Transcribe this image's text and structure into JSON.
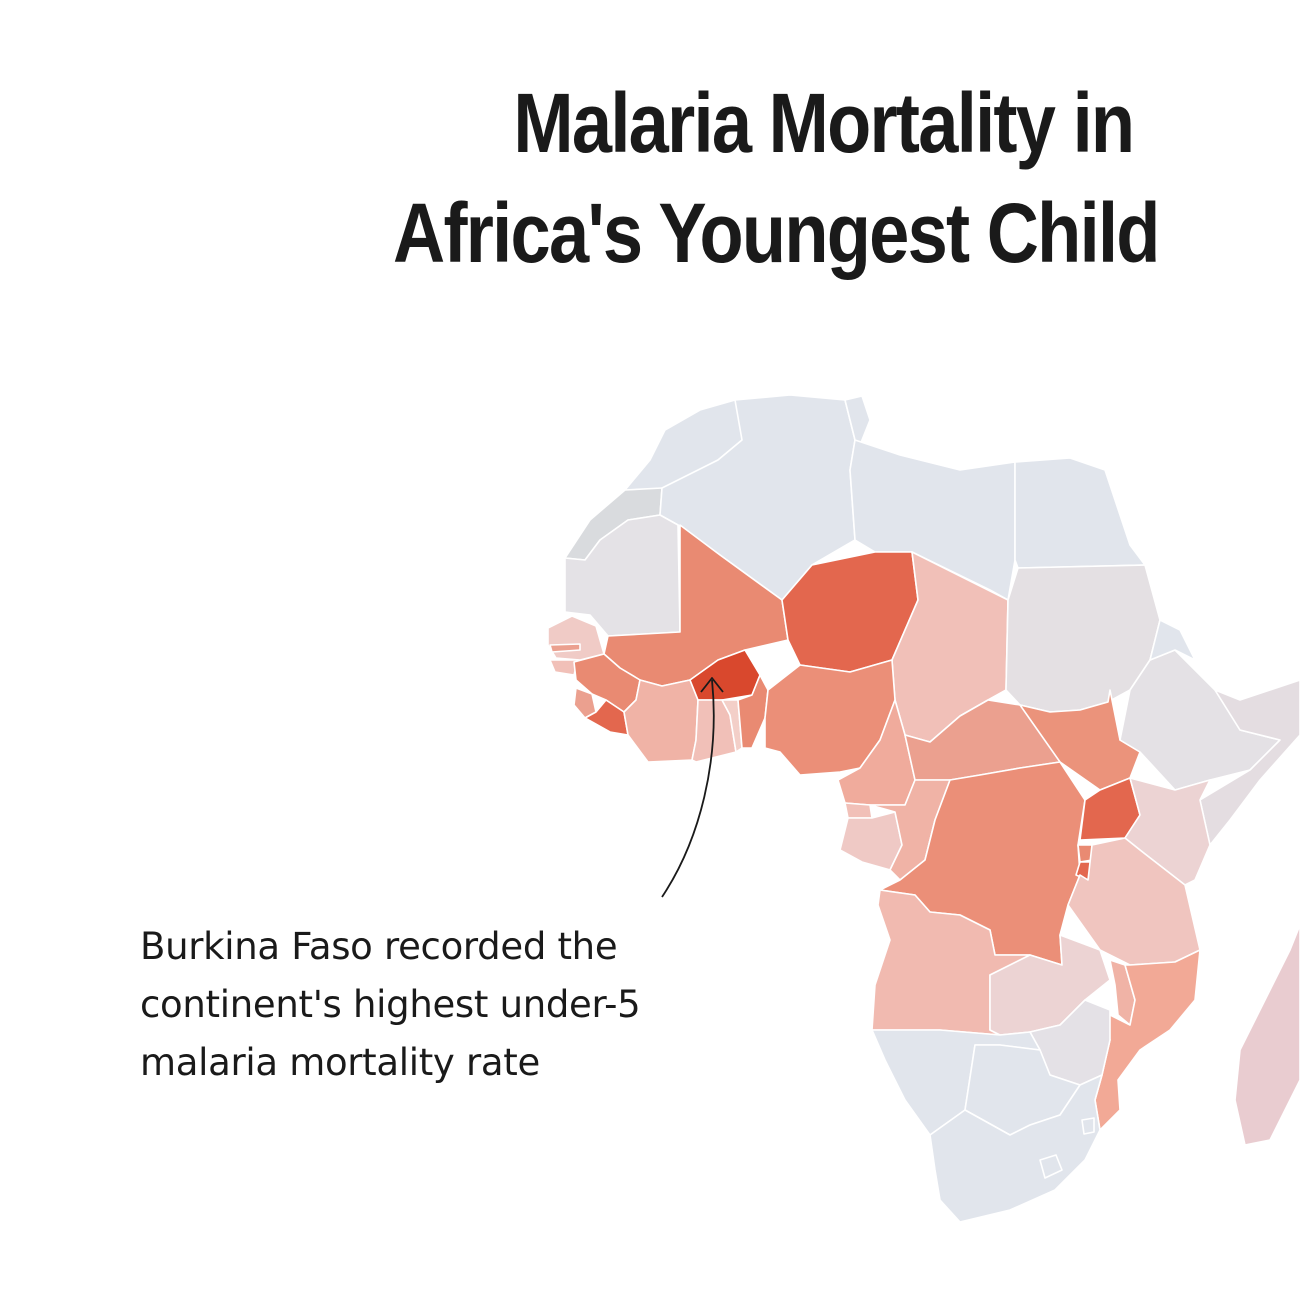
{
  "title": {
    "line1": "Malaria Mortality in",
    "line2": "Africa's Youngest Child"
  },
  "annotation": {
    "line1": "Burkina Faso recorded the",
    "line2": "continent's highest under-5",
    "line3": "malaria mortality rate"
  },
  "colors": {
    "no_data_grey": "#e1e5ec",
    "low": "#ecd3d3",
    "light": "#f1c0b8",
    "medium": "#eba08f",
    "medium_high": "#e98a72",
    "high": "#e3674e",
    "highest": "#d9482d",
    "border": "#ffffff"
  },
  "map": {
    "highlighted_country": "Burkina Faso"
  }
}
